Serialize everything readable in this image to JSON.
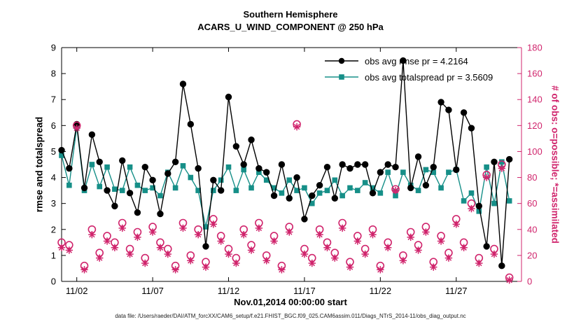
{
  "title": {
    "line1": "Southern Hemisphere",
    "line2": "ACARS_U_WIND_COMPONENT @ 250 hPa"
  },
  "xlabel": "Nov.01,2014 00:00:00 start",
  "caption": "data file: /Users/raeder/DAI/ATM_forcXX/CAM6_setup/f.e21.FHIST_BGC.f09_025.CAM6assim.011/Diags_NTrS_2014-11/obs_diag_output.nc",
  "colors": {
    "rmse": "#000000",
    "totalspread": "#168f88",
    "obs": "#d0246c",
    "axis": "#000000"
  },
  "chart_data": {
    "type": "line",
    "title": "Southern Hemisphere — ACARS_U_WIND_COMPONENT @ 250 hPa",
    "x_axis": {
      "label": "Nov.01,2014 00:00:00 start",
      "min": 1,
      "max": 31.3,
      "ticks": [
        {
          "day": 2,
          "label": "11/02"
        },
        {
          "day": 7,
          "label": "11/07"
        },
        {
          "day": 12,
          "label": "11/12"
        },
        {
          "day": 17,
          "label": "11/17"
        },
        {
          "day": 22,
          "label": "11/22"
        },
        {
          "day": 27,
          "label": "11/27"
        }
      ]
    },
    "left_axis": {
      "label": "rmse and totalspread",
      "min": 0,
      "max": 9,
      "tick_step": 1
    },
    "right_axis": {
      "label": "# of obs: o=possible; *=assimilated",
      "min": 0,
      "max": 180,
      "tick_step": 20
    },
    "grid": false,
    "legend_position": "top-right-inside",
    "x": [
      1,
      1.5,
      2,
      2.5,
      3,
      3.5,
      4,
      4.5,
      5,
      5.5,
      6,
      6.5,
      7,
      7.5,
      8,
      8.5,
      9,
      9.5,
      10,
      10.5,
      11,
      11.5,
      12,
      12.5,
      13,
      13.5,
      14,
      14.5,
      15,
      15.5,
      16,
      16.5,
      17,
      17.5,
      18,
      18.5,
      19,
      19.5,
      20,
      20.5,
      21,
      21.5,
      22,
      22.5,
      23,
      23.5,
      24,
      24.5,
      25,
      25.5,
      26,
      26.5,
      27,
      27.5,
      28,
      28.5,
      29,
      29.5,
      30,
      30.5
    ],
    "series": [
      {
        "name": "obs avg rmse pr = 4.2164",
        "axis": "left",
        "marker": "circle-filled",
        "line": true,
        "color": "#000000",
        "values": [
          5.05,
          4.35,
          6.05,
          3.6,
          5.65,
          4.6,
          3.5,
          2.9,
          4.65,
          3.4,
          2.65,
          4.4,
          3.9,
          2.6,
          4.15,
          4.6,
          7.6,
          6.05,
          4.35,
          1.35,
          3.9,
          3.5,
          7.1,
          5.2,
          4.5,
          5.45,
          4.35,
          4.2,
          3.3,
          4.5,
          3.2,
          4.0,
          2.4,
          3.3,
          3.7,
          4.4,
          3.2,
          4.5,
          4.35,
          4.5,
          4.5,
          3.4,
          4.2,
          4.5,
          4.4,
          8.5,
          3.6,
          4.8,
          3.7,
          4.4,
          6.9,
          6.6,
          4.3,
          6.5,
          5.9,
          2.9,
          1.35,
          4.6,
          0.6,
          4.7
        ]
      },
      {
        "name": "obs avg totalspread pr = 3.5609",
        "axis": "left",
        "marker": "square-filled",
        "line": true,
        "color": "#168f88",
        "values": [
          4.85,
          3.7,
          5.95,
          3.5,
          4.5,
          3.65,
          4.4,
          3.55,
          3.5,
          4.4,
          3.7,
          3.5,
          3.6,
          3.3,
          4.2,
          3.6,
          4.45,
          4.0,
          3.5,
          2.1,
          3.5,
          3.9,
          4.4,
          3.5,
          4.3,
          3.6,
          4.2,
          3.9,
          3.6,
          3.4,
          3.9,
          3.5,
          3.6,
          3.0,
          3.4,
          3.5,
          3.9,
          3.3,
          3.6,
          3.5,
          3.8,
          3.6,
          3.4,
          4.2,
          3.3,
          4.2,
          3.7,
          3.5,
          4.3,
          4.2,
          3.6,
          4.2,
          4.3,
          3.1,
          3.4,
          2.7,
          4.4,
          3.0,
          4.6,
          3.1
        ]
      },
      {
        "name": "# of obs possible",
        "axis": "right",
        "marker": "circle-open",
        "line": false,
        "color": "#d0246c",
        "values": [
          30,
          28,
          120,
          12,
          40,
          22,
          35,
          30,
          45,
          25,
          38,
          18,
          42,
          30,
          25,
          12,
          45,
          20,
          40,
          15,
          48,
          35,
          25,
          18,
          40,
          28,
          45,
          20,
          35,
          12,
          42,
          121,
          25,
          18,
          40,
          30,
          22,
          45,
          15,
          35,
          25,
          40,
          12,
          30,
          71,
          20,
          38,
          28,
          42,
          15,
          35,
          22,
          48,
          30,
          60,
          18,
          82,
          25,
          90,
          3
        ]
      },
      {
        "name": "# of obs assimilated",
        "axis": "right",
        "marker": "asterisk",
        "line": false,
        "color": "#d0246c",
        "values": [
          26,
          24,
          118,
          9,
          36,
          18,
          31,
          26,
          41,
          21,
          34,
          14,
          38,
          26,
          21,
          9,
          41,
          16,
          36,
          11,
          44,
          31,
          21,
          14,
          36,
          24,
          41,
          16,
          31,
          9,
          38,
          119,
          21,
          14,
          36,
          26,
          18,
          41,
          11,
          31,
          21,
          36,
          9,
          26,
          70,
          16,
          34,
          24,
          38,
          11,
          31,
          18,
          44,
          26,
          56,
          14,
          80,
          21,
          87,
          1
        ]
      }
    ]
  }
}
